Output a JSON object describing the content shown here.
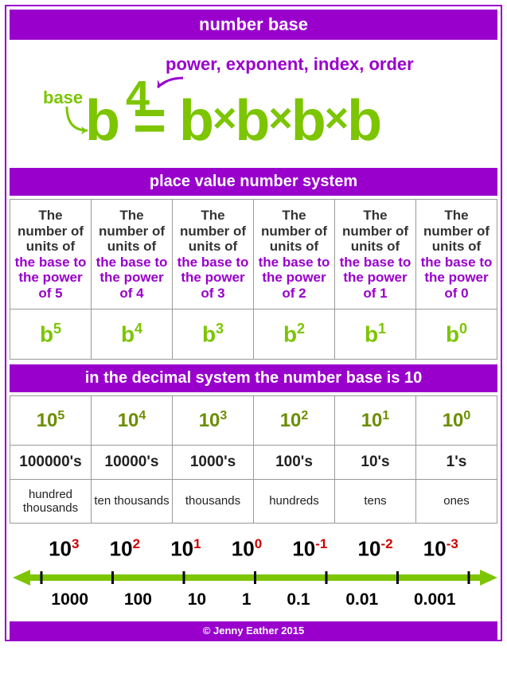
{
  "colors": {
    "purple": "#9900cc",
    "green": "#7cc500",
    "olive": "#6b8e00",
    "red": "#cc0000",
    "text": "#333333",
    "border": "#999999",
    "bg": "#ffffff"
  },
  "banners": {
    "title": "number base",
    "placeValue": "place value number system",
    "decimal": "in the decimal system the number base is 10",
    "footer": "© Jenny Eather 2015"
  },
  "diagram": {
    "baseLabel": "base",
    "powerLabel": "power, exponent, index, order",
    "baseLetter": "b",
    "exponent": "4",
    "eq": " = ",
    "mult": "×",
    "repeats": 4,
    "fontsize_expr": 72,
    "fontsize_exp": 54,
    "fontsize_label": 22
  },
  "table1": {
    "descPrefix": "The number of units of",
    "descSuffixPrefix": "the base to the power of ",
    "powers": [
      5,
      4,
      3,
      2,
      1,
      0
    ],
    "baseLetter": "b"
  },
  "table2": {
    "base": 10,
    "powers": [
      5,
      4,
      3,
      2,
      1,
      0
    ],
    "values": [
      "100000's",
      "10000's",
      "1000's",
      "100's",
      "10's",
      "1's"
    ],
    "names": [
      "hundred thousands",
      "ten thousands",
      "thousands",
      "hundreds",
      "tens",
      "ones"
    ]
  },
  "numberline": {
    "base": 10,
    "exponents": [
      3,
      2,
      1,
      0,
      -1,
      -2,
      -3
    ],
    "values": [
      "1000",
      "100",
      "10",
      "1",
      "0.1",
      "0.01",
      "0.001"
    ],
    "arrow_color": "#7cc500",
    "tick_color": "#000000",
    "fontsize_top": 26,
    "fontsize_bot": 21
  }
}
